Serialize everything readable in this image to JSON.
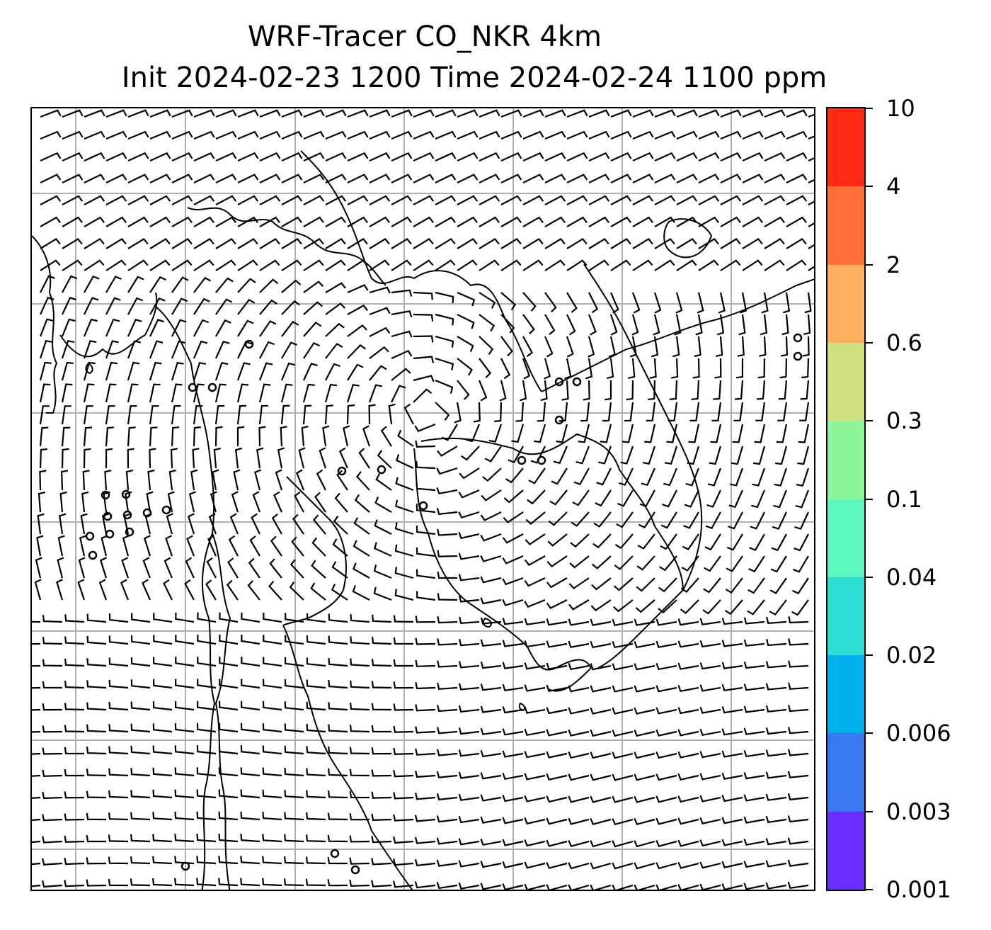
{
  "title": {
    "line1": "WRF-Tracer CO_NKR 4km",
    "line2": "Init 2024-02-23 1200 Time 2024-02-24 1100 ppm"
  },
  "map": {
    "variable": "CO_NKR",
    "units": "ppm",
    "overlay": "wind barbs",
    "features": [
      "coastlines",
      "country borders",
      "graticule"
    ],
    "gridlines": true,
    "tracer_fill": "none visible"
  },
  "colorbar": {
    "levels": [
      "0.001",
      "0.003",
      "0.006",
      "0.02",
      "0.04",
      "0.1",
      "0.3",
      "0.6",
      "2",
      "4",
      "10"
    ],
    "colors": [
      "#6a2cff",
      "#3a78f0",
      "#00b0ec",
      "#2ddcd2",
      "#5cf8c0",
      "#8ef59a",
      "#cfe081",
      "#ffb05e",
      "#ff6f3a",
      "#ff2a16"
    ],
    "colors_top_to_bottom_note": ""
  },
  "colors": {
    "grid": "#b0b0b0",
    "lines": "#000000"
  }
}
